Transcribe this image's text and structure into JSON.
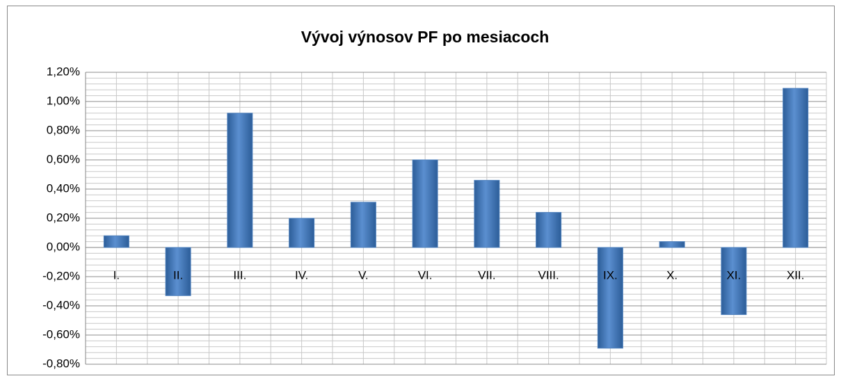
{
  "chart_data": {
    "type": "bar",
    "title": "Vývoj výnosov PF po mesiacoch",
    "categories": [
      "I.",
      "II.",
      "III.",
      "IV.",
      "V.",
      "VI.",
      "VII.",
      "VIII.",
      "IX.",
      "X.",
      "XI.",
      "XII."
    ],
    "values": [
      0.08,
      -0.33,
      0.92,
      0.2,
      0.31,
      0.6,
      0.46,
      0.24,
      -0.69,
      0.04,
      -0.46,
      1.09
    ],
    "color": "#4f81bd",
    "ylim": [
      -0.8,
      1.2
    ],
    "yticks": [
      {
        "value": -0.8,
        "label": "-0,80%"
      },
      {
        "value": -0.6,
        "label": "-0,60%"
      },
      {
        "value": -0.4,
        "label": "-0,40%"
      },
      {
        "value": -0.2,
        "label": "-0,20%"
      },
      {
        "value": 0,
        "label": "0,00%"
      },
      {
        "value": 0.2,
        "label": "0,20%"
      },
      {
        "value": 0.4,
        "label": "0,40%"
      },
      {
        "value": 0.6,
        "label": "0,60%"
      },
      {
        "value": 0.8,
        "label": "0,80%"
      },
      {
        "value": 1.0,
        "label": "1,00%"
      },
      {
        "value": 1.2,
        "label": "1,20%"
      }
    ],
    "grid": true
  }
}
